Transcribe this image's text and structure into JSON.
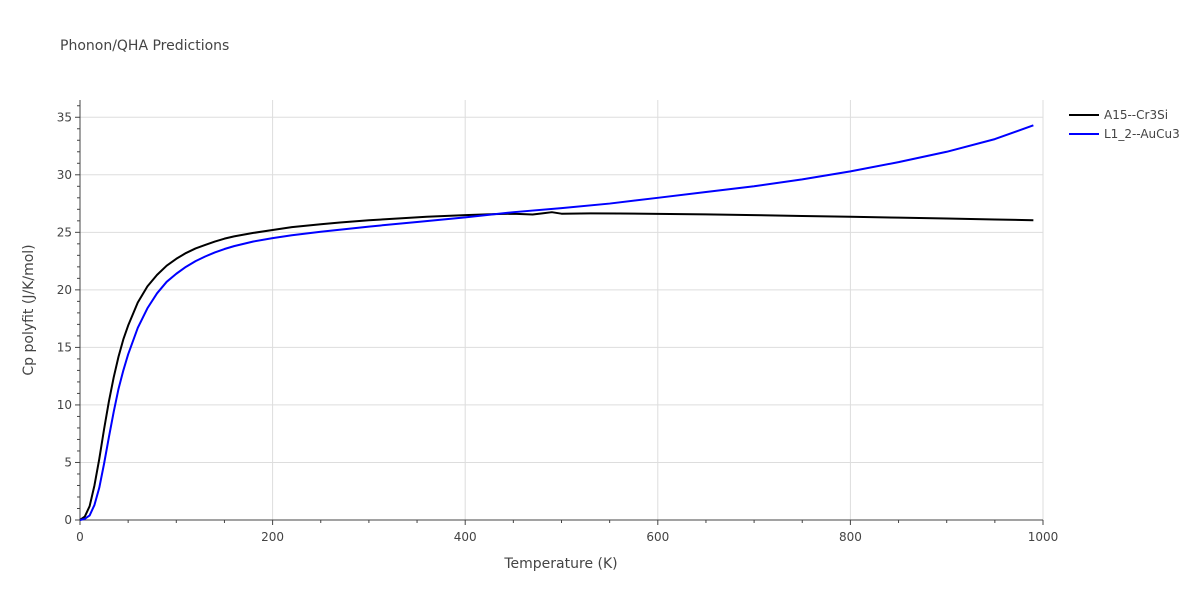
{
  "chart_data": {
    "type": "line",
    "title": "Phonon/QHA Predictions",
    "xlabel": "Temperature (K)",
    "ylabel": "Cp polyfit (J/K/mol)",
    "xlim": [
      0,
      1000
    ],
    "ylim": [
      0,
      36.5
    ],
    "x_ticks": [
      0,
      200,
      400,
      600,
      800,
      1000
    ],
    "y_ticks": [
      0,
      5,
      10,
      15,
      20,
      25,
      30,
      35
    ],
    "grid": true,
    "legend_position": "top-right",
    "series": [
      {
        "name": "A15--Cr3Si",
        "color": "#000000",
        "x": [
          0,
          5,
          10,
          15,
          20,
          25,
          30,
          35,
          40,
          45,
          50,
          60,
          70,
          80,
          90,
          100,
          110,
          120,
          130,
          140,
          150,
          160,
          180,
          200,
          220,
          250,
          270,
          300,
          330,
          360,
          400,
          430,
          450,
          470,
          480,
          490,
          500,
          530,
          560,
          600,
          650,
          700,
          750,
          800,
          850,
          900,
          950,
          990
        ],
        "y": [
          0,
          0.3,
          1.2,
          3.0,
          5.3,
          7.9,
          10.3,
          12.4,
          14.2,
          15.7,
          16.9,
          18.9,
          20.3,
          21.3,
          22.1,
          22.7,
          23.2,
          23.6,
          23.9,
          24.2,
          24.45,
          24.65,
          24.95,
          25.2,
          25.45,
          25.7,
          25.85,
          26.05,
          26.2,
          26.35,
          26.5,
          26.58,
          26.62,
          26.55,
          26.65,
          26.75,
          26.62,
          26.65,
          26.64,
          26.6,
          26.56,
          26.5,
          26.42,
          26.35,
          26.28,
          26.2,
          26.12,
          26.05
        ]
      },
      {
        "name": "L1_2--AuCu3",
        "color": "#0000ff",
        "x": [
          0,
          5,
          10,
          15,
          20,
          25,
          30,
          35,
          40,
          45,
          50,
          60,
          70,
          80,
          90,
          100,
          110,
          120,
          130,
          140,
          150,
          160,
          180,
          200,
          220,
          250,
          300,
          350,
          400,
          450,
          500,
          550,
          600,
          650,
          700,
          750,
          800,
          850,
          900,
          950,
          990
        ],
        "y": [
          0,
          0.1,
          0.4,
          1.3,
          2.8,
          4.9,
          7.2,
          9.4,
          11.4,
          13.0,
          14.4,
          16.7,
          18.4,
          19.7,
          20.7,
          21.4,
          22.0,
          22.5,
          22.9,
          23.25,
          23.55,
          23.8,
          24.2,
          24.5,
          24.75,
          25.05,
          25.5,
          25.9,
          26.3,
          26.75,
          27.1,
          27.5,
          28.0,
          28.5,
          29.0,
          29.6,
          30.3,
          31.1,
          32.0,
          33.1,
          34.3
        ]
      }
    ]
  }
}
